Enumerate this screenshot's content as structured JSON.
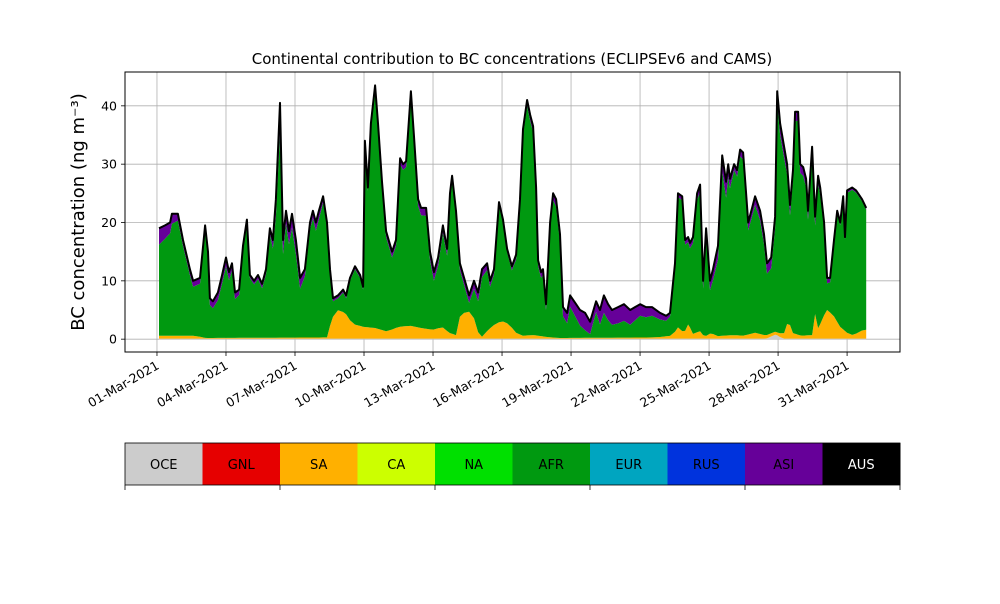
{
  "chart_data": {
    "type": "area",
    "stacked": true,
    "title": "Continental contribution to BC concentrations (ECLIPSEv6 and CAMS)",
    "xlabel": "",
    "ylabel": "BC concentration (ng m⁻³)",
    "x_unit": "days since 01-Mar-2021",
    "xlim": [
      -1.39,
      32.3
    ],
    "ylim": [
      -2.2,
      45.8
    ],
    "yticks": [
      0,
      10,
      20,
      30,
      40
    ],
    "xticks": [
      0,
      3,
      6,
      9,
      12,
      15,
      18,
      21,
      24,
      27,
      30
    ],
    "xtick_labels": [
      "01-Mar-2021",
      "04-Mar-2021",
      "07-Mar-2021",
      "10-Mar-2021",
      "13-Mar-2021",
      "16-Mar-2021",
      "19-Mar-2021",
      "22-Mar-2021",
      "25-Mar-2021",
      "28-Mar-2021",
      "31-Mar-2021"
    ],
    "grid": true,
    "x": [
      0.09,
      0.35,
      0.57,
      0.65,
      0.91,
      1.13,
      1.43,
      1.57,
      1.87,
      2.09,
      2.22,
      2.3,
      2.43,
      2.65,
      2.83,
      3.0,
      3.13,
      3.26,
      3.39,
      3.57,
      3.74,
      3.91,
      4.04,
      4.22,
      4.39,
      4.57,
      4.74,
      4.91,
      5.04,
      5.17,
      5.35,
      5.48,
      5.61,
      5.74,
      5.87,
      6.04,
      6.22,
      6.43,
      6.65,
      6.78,
      6.91,
      7.04,
      7.22,
      7.39,
      7.52,
      7.65,
      7.87,
      8.09,
      8.22,
      8.39,
      8.61,
      8.83,
      8.96,
      9.04,
      9.17,
      9.3,
      9.48,
      9.61,
      9.78,
      9.96,
      10.22,
      10.39,
      10.57,
      10.7,
      10.83,
      11.04,
      11.17,
      11.35,
      11.48,
      11.7,
      11.87,
      12.04,
      12.22,
      12.43,
      12.61,
      12.74,
      12.83,
      13.0,
      13.17,
      13.35,
      13.57,
      13.78,
      13.96,
      14.13,
      14.35,
      14.48,
      14.65,
      14.87,
      15.04,
      15.22,
      15.43,
      15.61,
      15.78,
      15.91,
      16.09,
      16.22,
      16.35,
      16.48,
      16.57,
      16.7,
      16.78,
      16.91,
      17.09,
      17.22,
      17.35,
      17.52,
      17.65,
      17.83,
      17.96,
      18.22,
      18.39,
      18.61,
      18.83,
      19.09,
      19.26,
      19.43,
      19.61,
      19.78,
      20.04,
      20.3,
      20.57,
      20.78,
      21.0,
      21.26,
      21.52,
      21.87,
      22.13,
      22.3,
      22.52,
      22.65,
      22.83,
      22.96,
      23.09,
      23.17,
      23.3,
      23.48,
      23.61,
      23.74,
      23.87,
      24.04,
      24.17,
      24.39,
      24.57,
      24.74,
      24.83,
      24.91,
      25.09,
      25.22,
      25.35,
      25.48,
      25.61,
      25.7,
      25.87,
      26.0,
      26.22,
      26.39,
      26.52,
      26.7,
      26.87,
      26.96,
      27.09,
      27.26,
      27.39,
      27.52,
      27.65,
      27.74,
      27.87,
      27.96,
      28.09,
      28.22,
      28.3,
      28.48,
      28.61,
      28.74,
      28.83,
      29.0,
      29.13,
      29.26,
      29.43,
      29.57,
      29.7,
      29.83,
      29.91,
      30.0,
      30.22,
      30.39,
      30.65,
      30.83
    ],
    "total": [
      19,
      19.5,
      20,
      21.5,
      21.5,
      17,
      12,
      10,
      10.5,
      19.5,
      15,
      7,
      6.5,
      8,
      11,
      14,
      11.5,
      13,
      8,
      8.5,
      16,
      20.5,
      11,
      10,
      11,
      9.5,
      12,
      19,
      17,
      24,
      40.5,
      17,
      22,
      18.5,
      21.5,
      17,
      10.5,
      12,
      20,
      22,
      20,
      22,
      24.5,
      20,
      12,
      7,
      7.5,
      8.5,
      7.5,
      10.5,
      12.5,
      11,
      9,
      34,
      26,
      37,
      43.5,
      37,
      27,
      18.5,
      15,
      17,
      31,
      30,
      30.5,
      42.5,
      35,
      24,
      22.5,
      22.5,
      15,
      11.5,
      14,
      19.5,
      15.5,
      25,
      28,
      22,
      13,
      10.5,
      7.5,
      10,
      8,
      12,
      13,
      10,
      12,
      23.5,
      20.5,
      15.5,
      12.5,
      14.5,
      24,
      36,
      41,
      38.5,
      36.5,
      26,
      13.5,
      11.5,
      12,
      6,
      20,
      25,
      24,
      18,
      5.5,
      4.5,
      7.5,
      6,
      5,
      4.5,
      3,
      6.5,
      5,
      7.5,
      6,
      5,
      5.5,
      6,
      5,
      5.5,
      6,
      5.5,
      5.5,
      4.5,
      4,
      4.5,
      13,
      25,
      24.5,
      17,
      17.5,
      16.5,
      17.5,
      25,
      26.5,
      10,
      19,
      10,
      12,
      16,
      31.5,
      27,
      30,
      27.5,
      30,
      29,
      32.5,
      32,
      25,
      20,
      22.5,
      24.5,
      22,
      18,
      13,
      14,
      21,
      42.5,
      37,
      33,
      30,
      23,
      29,
      39,
      39,
      30,
      29.5,
      27.5,
      22,
      33,
      21,
      28,
      26,
      20,
      10.5,
      10.5,
      17,
      22,
      20,
      24.5,
      17.5,
      25.5,
      26,
      25.5,
      24,
      22.5
    ],
    "series": [
      {
        "name": "OCE",
        "color": "#cccccc",
        "points": [
          [
            0,
            0.1
          ],
          [
            26.5,
            0.1
          ],
          [
            26.9,
            0.8
          ],
          [
            27.2,
            0.1
          ],
          [
            30.83,
            0.1
          ]
        ]
      },
      {
        "name": "SA",
        "color": "#ffb000",
        "points": [
          [
            0.09,
            0.5
          ],
          [
            1.7,
            0.5
          ],
          [
            2.1,
            0.1
          ],
          [
            7.4,
            0.2
          ],
          [
            7.6,
            3.5
          ],
          [
            7.9,
            5
          ],
          [
            8.2,
            4.3
          ],
          [
            8.5,
            2.5
          ],
          [
            9.0,
            2
          ],
          [
            9.5,
            1.8
          ],
          [
            10,
            1.2
          ],
          [
            10.5,
            2
          ],
          [
            11,
            2.2
          ],
          [
            11.5,
            1.8
          ],
          [
            12,
            1.5
          ],
          [
            12.4,
            2
          ],
          [
            12.7,
            1
          ],
          [
            13.0,
            0.6
          ],
          [
            13.2,
            4.3
          ],
          [
            13.5,
            4.5
          ],
          [
            13.7,
            4.8
          ],
          [
            13.9,
            1.5
          ],
          [
            14.1,
            0.2
          ],
          [
            14.4,
            1.5
          ],
          [
            14.7,
            2.5
          ],
          [
            15.0,
            3
          ],
          [
            15.3,
            2.5
          ],
          [
            15.6,
            1
          ],
          [
            15.9,
            0.5
          ],
          [
            16.4,
            0.6
          ],
          [
            16.9,
            0.3
          ],
          [
            17.5,
            0.1
          ],
          [
            21.7,
            0.2
          ],
          [
            22.4,
            0.5
          ],
          [
            22.7,
            2.2
          ],
          [
            22.9,
            0.8
          ],
          [
            23.1,
            2.5
          ],
          [
            23.3,
            0.8
          ],
          [
            23.6,
            1.3
          ],
          [
            23.8,
            0.3
          ],
          [
            24.1,
            1
          ],
          [
            24.3,
            0.4
          ],
          [
            25,
            0.6
          ],
          [
            25.5,
            0.5
          ],
          [
            26,
            1
          ],
          [
            26.4,
            0.6
          ],
          [
            27.0,
            0.5
          ],
          [
            27.3,
            1
          ],
          [
            27.45,
            3.5
          ],
          [
            27.6,
            1
          ],
          [
            28,
            0.5
          ],
          [
            28.5,
            0.6
          ],
          [
            28.6,
            4.5
          ],
          [
            28.7,
            1.5
          ],
          [
            28.9,
            3
          ],
          [
            29.1,
            5
          ],
          [
            29.4,
            4
          ],
          [
            29.7,
            2
          ],
          [
            30.0,
            1
          ],
          [
            30.3,
            0.5
          ],
          [
            30.5,
            1.3
          ],
          [
            30.83,
            1.5
          ]
        ]
      },
      {
        "name": "AFR",
        "color": "#009910",
        "residual": true
      },
      {
        "name": "ASI",
        "color": "#660099",
        "points": [
          [
            0,
            3
          ],
          [
            0.5,
            2
          ],
          [
            1,
            1
          ],
          [
            2,
            1
          ],
          [
            3,
            1.5
          ],
          [
            4,
            0.5
          ],
          [
            5,
            1
          ],
          [
            5.35,
            5
          ],
          [
            5.5,
            2
          ],
          [
            6,
            2.5
          ],
          [
            6.5,
            1
          ],
          [
            7,
            1.5
          ],
          [
            7.5,
            0.5
          ],
          [
            9,
            0.5
          ],
          [
            10,
            1
          ],
          [
            11,
            1
          ],
          [
            12,
            1.5
          ],
          [
            13,
            1
          ],
          [
            14,
            1.5
          ],
          [
            15,
            0.5
          ],
          [
            16,
            1
          ],
          [
            17,
            1
          ],
          [
            17.6,
            1.5
          ],
          [
            18,
            2
          ],
          [
            18.6,
            3
          ],
          [
            19,
            1.5
          ],
          [
            19.4,
            3
          ],
          [
            19.8,
            2.5
          ],
          [
            20.2,
            3
          ],
          [
            21,
            2
          ],
          [
            22,
            1
          ],
          [
            22.4,
            0.5
          ],
          [
            23,
            0.8
          ],
          [
            24,
            1.5
          ],
          [
            24.7,
            3
          ],
          [
            25,
            1
          ],
          [
            26,
            1.5
          ],
          [
            27,
            2
          ],
          [
            28,
            1.5
          ],
          [
            28.6,
            1.5
          ],
          [
            29.5,
            0.5
          ],
          [
            30.83,
            0.3
          ]
        ]
      }
    ],
    "legend": {
      "placement": "bottom colorbar",
      "entries": [
        {
          "label": "OCE",
          "color": "#cccccc"
        },
        {
          "label": "GNL",
          "color": "#e60000"
        },
        {
          "label": "SA",
          "color": "#ffb000"
        },
        {
          "label": "CA",
          "color": "#ccff00"
        },
        {
          "label": "NA",
          "color": "#00e000"
        },
        {
          "label": "AFR",
          "color": "#009910"
        },
        {
          "label": "EUR",
          "color": "#00a5c0"
        },
        {
          "label": "RUS",
          "color": "#0033dd"
        },
        {
          "label": "ASI",
          "color": "#660099"
        },
        {
          "label": "AUS",
          "color": "#000000"
        }
      ]
    }
  }
}
